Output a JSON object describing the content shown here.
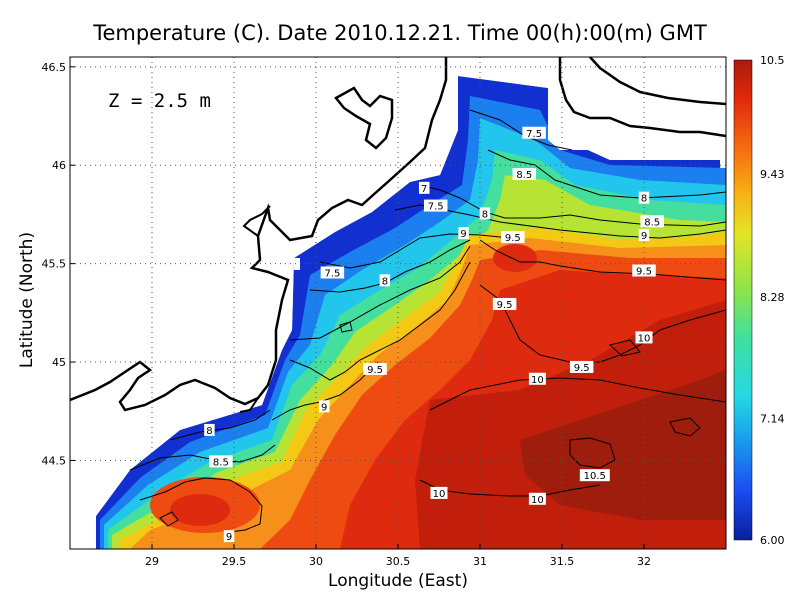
{
  "title": "Temperature (C). Date 2010.12.21. Time 00(h):00(m) GMT",
  "depth_label": "Z = 2.5 m",
  "chart_data": {
    "type": "heatmap",
    "xlabel": "Longitude (East)",
    "ylabel": "Latitude (North)",
    "xlim": [
      28.5,
      32.5
    ],
    "ylim": [
      44.05,
      46.55
    ],
    "x_ticks": [
      "29",
      "29.5",
      "30",
      "30.5",
      "31",
      "31.5",
      "32"
    ],
    "y_ticks": [
      "44.5",
      "45",
      "45.5",
      "46",
      "46.5"
    ],
    "grid": true,
    "colorbar": {
      "range": [
        6.0,
        10.5
      ],
      "tick_labels": [
        "6.00",
        "7.14",
        "8.28",
        "9.43",
        "10.5"
      ],
      "colors": [
        "#0a1f9e",
        "#1a4bf0",
        "#19a6ee",
        "#25d8e2",
        "#3ee0a0",
        "#8ee34a",
        "#e4e424",
        "#f8b214",
        "#f56a0f",
        "#e0280c",
        "#a71d0b"
      ]
    },
    "contour_labels": [
      {
        "text": "7.5",
        "lon": 31.33,
        "lat": 46.16
      },
      {
        "text": "8.5",
        "lon": 31.27,
        "lat": 45.95
      },
      {
        "text": "7",
        "lon": 30.66,
        "lat": 45.88
      },
      {
        "text": "7.5",
        "lon": 30.73,
        "lat": 45.79
      },
      {
        "text": "8",
        "lon": 31.03,
        "lat": 45.75
      },
      {
        "text": "8",
        "lon": 32.0,
        "lat": 45.83
      },
      {
        "text": "8.5",
        "lon": 32.05,
        "lat": 45.71
      },
      {
        "text": "9",
        "lon": 30.9,
        "lat": 45.65
      },
      {
        "text": "9.5",
        "lon": 31.2,
        "lat": 45.63
      },
      {
        "text": "9",
        "lon": 32.0,
        "lat": 45.64
      },
      {
        "text": "7.5",
        "lon": 30.1,
        "lat": 45.45
      },
      {
        "text": "8",
        "lon": 30.42,
        "lat": 45.41
      },
      {
        "text": "9.5",
        "lon": 32.0,
        "lat": 45.46
      },
      {
        "text": "9.5",
        "lon": 31.15,
        "lat": 45.29
      },
      {
        "text": "10",
        "lon": 32.0,
        "lat": 45.12
      },
      {
        "text": "9.5",
        "lon": 30.36,
        "lat": 44.96
      },
      {
        "text": "9.5",
        "lon": 31.62,
        "lat": 44.97
      },
      {
        "text": "10",
        "lon": 31.35,
        "lat": 44.91
      },
      {
        "text": "9",
        "lon": 30.05,
        "lat": 44.77
      },
      {
        "text": "8",
        "lon": 29.35,
        "lat": 44.65
      },
      {
        "text": "8.5",
        "lon": 29.42,
        "lat": 44.49
      },
      {
        "text": "10.5",
        "lon": 31.7,
        "lat": 44.42
      },
      {
        "text": "10",
        "lon": 30.75,
        "lat": 44.33
      },
      {
        "text": "10",
        "lon": 31.35,
        "lat": 44.3
      },
      {
        "text": "9",
        "lon": 29.47,
        "lat": 44.11
      }
    ]
  }
}
